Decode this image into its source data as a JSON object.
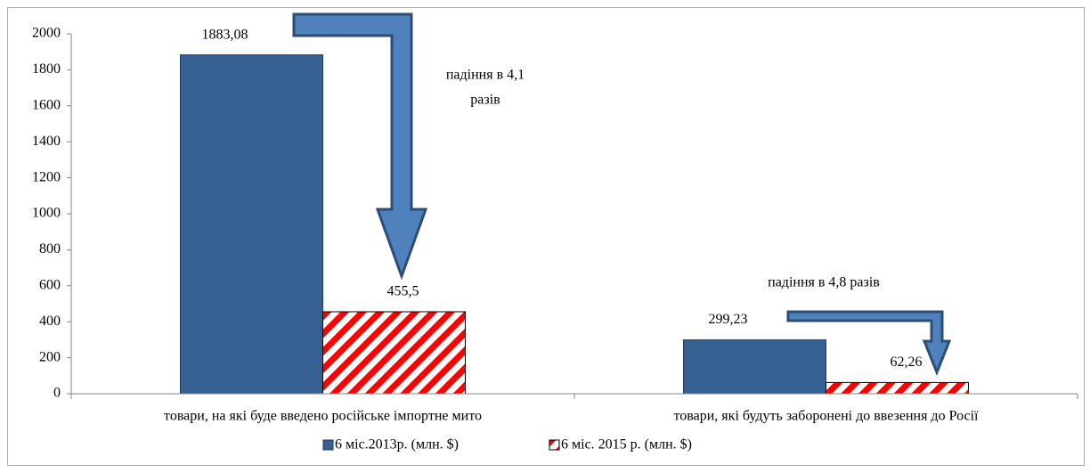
{
  "chart_data": {
    "type": "bar",
    "categories": [
      "товари, на які буде введено російське імпортне мито",
      "товари, які будуть заборонені до ввезення до Росії"
    ],
    "series": [
      {
        "name": "6 міс.2013р. (млн. $)",
        "color": "#376092",
        "values": [
          1883.08,
          299.23
        ],
        "value_labels": [
          "1883,08",
          "299,23"
        ]
      },
      {
        "name": "6 міс. 2015 р. (млн. $)",
        "color": "#ff0000",
        "pattern": "diagonal-hatch",
        "values": [
          455.5,
          62.26
        ],
        "value_labels": [
          "455,5",
          "62,26"
        ]
      }
    ],
    "ylim": [
      0,
      2000
    ],
    "yticks": [
      0,
      200,
      400,
      600,
      800,
      1000,
      1200,
      1400,
      1600,
      1800,
      2000
    ],
    "grid": false,
    "legend": "bottom",
    "annotations": [
      [
        "падіння в 4,1",
        "разів"
      ],
      [
        "падіння в 4,8 разів"
      ]
    ]
  }
}
